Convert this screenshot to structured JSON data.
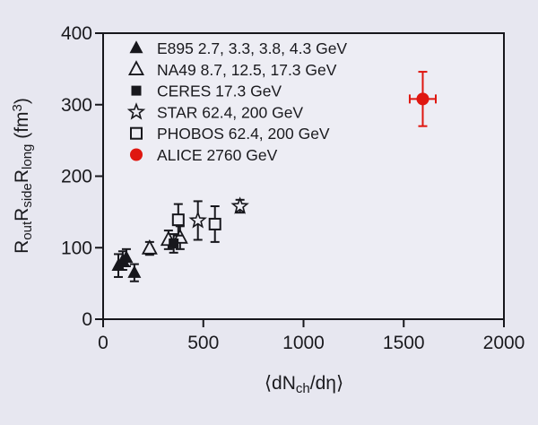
{
  "figure": {
    "background": "#e7e7f0",
    "plot_background": "#ededf4",
    "frame_color": "#17171c",
    "text_color": "#1a1a1e",
    "accent_red": "#df1710"
  },
  "chart_data": {
    "type": "scatter",
    "title": "",
    "xlabel_parts": [
      {
        "t": "⟨dN"
      },
      {
        "t": "ch",
        "sub": true
      },
      {
        "t": "/d"
      },
      {
        "t": "η"
      },
      {
        "t": "⟩"
      }
    ],
    "ylabel_parts": [
      {
        "t": "R"
      },
      {
        "t": "out",
        "sub": true
      },
      {
        "t": "R"
      },
      {
        "t": "side",
        "sub": true
      },
      {
        "t": "R"
      },
      {
        "t": "long",
        "sub": true
      },
      {
        "t": " (fm"
      },
      {
        "t": "3",
        "sup": true
      },
      {
        "t": ")"
      }
    ],
    "xlim": [
      0,
      2000
    ],
    "ylim": [
      0,
      400
    ],
    "xticks": [
      "0",
      "500",
      "1000",
      "1500",
      "2000"
    ],
    "yticks": [
      "0",
      "100",
      "200",
      "300",
      "400"
    ],
    "grid": false,
    "legend_position": "top-left",
    "series": [
      {
        "name": "E895 2.7, 3.3, 3.8, 4.3 GeV",
        "marker": "triangle-filled",
        "color": "#17171c",
        "points": [
          {
            "x": 76,
            "y": 75,
            "ey": 16
          },
          {
            "x": 98,
            "y": 82,
            "ey": 13
          },
          {
            "x": 116,
            "y": 86,
            "ey": 12
          },
          {
            "x": 156,
            "y": 65,
            "ey": 12
          }
        ]
      },
      {
        "name": "NA49 8.7, 12.5, 17.3 GeV",
        "marker": "triangle-open",
        "color": "#17171c",
        "points": [
          {
            "x": 232,
            "y": 99,
            "ey": 9
          },
          {
            "x": 326,
            "y": 111,
            "ey": 13
          },
          {
            "x": 384,
            "y": 114,
            "ey": 16
          }
        ]
      },
      {
        "name": "CERES 17.3 GeV",
        "marker": "square-filled",
        "color": "#17171c",
        "points": [
          {
            "x": 352,
            "y": 106,
            "ey": 13
          }
        ]
      },
      {
        "name": "STAR 62.4, 200 GeV",
        "marker": "star-open",
        "color": "#17171c",
        "points": [
          {
            "x": 473,
            "y": 138,
            "ey": 27
          },
          {
            "x": 683,
            "y": 158,
            "ey": 9
          }
        ]
      },
      {
        "name": "PHOBOS 62.4, 200 GeV",
        "marker": "square-open",
        "color": "#17171c",
        "points": [
          {
            "x": 375,
            "y": 139,
            "ey": 22
          },
          {
            "x": 558,
            "y": 133,
            "ey": 25
          }
        ]
      },
      {
        "name": "ALICE 2760 GeV",
        "marker": "circle-filled",
        "color": "#df1710",
        "points": [
          {
            "x": 1595,
            "y": 308,
            "ey": 38,
            "ex": 65
          }
        ]
      }
    ]
  }
}
